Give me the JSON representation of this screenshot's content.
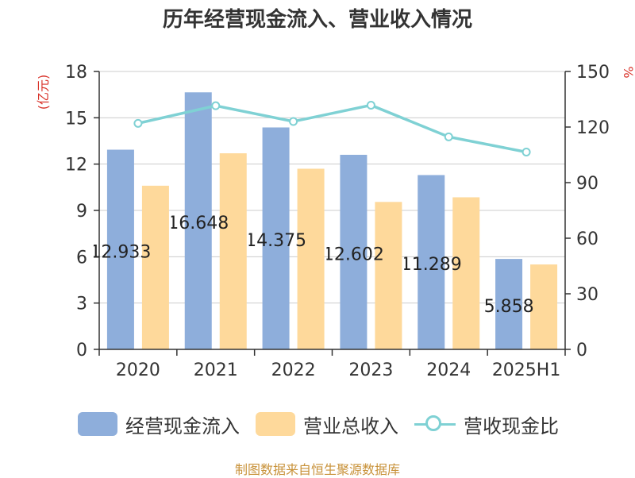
{
  "chart_data": {
    "type": "bar",
    "title": "历年经营现金流入、营业收入情况",
    "categories": [
      "2020",
      "2021",
      "2022",
      "2023",
      "2024",
      "2025H1"
    ],
    "series": [
      {
        "name": "经营现金流入",
        "kind": "bar",
        "axis": "left",
        "color": "#8eaedb",
        "values": [
          12.933,
          16.648,
          14.375,
          12.602,
          11.289,
          5.858
        ],
        "labels": [
          "12.933",
          "16.648",
          "14.375",
          "12.602",
          "11.289",
          "5.858"
        ]
      },
      {
        "name": "营业总收入",
        "kind": "bar",
        "axis": "left",
        "color": "#fed99b",
        "values": [
          10.6,
          12.7,
          11.7,
          9.55,
          9.85,
          5.5
        ]
      },
      {
        "name": "营收现金比",
        "kind": "line",
        "axis": "right",
        "color": "#7fd1d4",
        "values": [
          122,
          131.5,
          123,
          131.8,
          114.7,
          106.5
        ]
      }
    ],
    "y_left": {
      "label": "(亿元)",
      "label_color": "#d9342b",
      "range": [
        0,
        18
      ],
      "ticks": [
        0,
        3,
        6,
        9,
        12,
        15,
        18
      ]
    },
    "y_right": {
      "label": "%",
      "label_color": "#d9342b",
      "range": [
        0,
        150
      ],
      "ticks": [
        0,
        30,
        60,
        90,
        120,
        150
      ]
    },
    "grid": true,
    "legend_position": "bottom"
  },
  "source": "制图数据来自恒生聚源数据库"
}
